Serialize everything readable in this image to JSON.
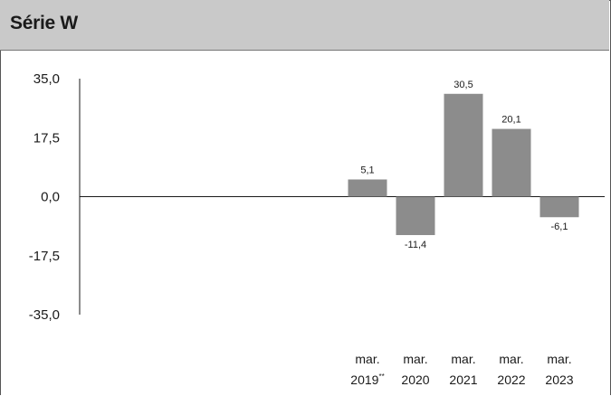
{
  "header": {
    "title": "Série W"
  },
  "chart_data": {
    "type": "bar",
    "title": "Série W",
    "xlabel": "",
    "ylabel": "",
    "ylim": [
      -35.0,
      35.0
    ],
    "yticks": [
      "35,0",
      "17,5",
      "0,0",
      "-17,5",
      "-35,0"
    ],
    "ytick_values": [
      35.0,
      17.5,
      0.0,
      -17.5,
      -35.0
    ],
    "categories": [
      {
        "line1": "mar.",
        "line2": "2019",
        "sup": "**"
      },
      {
        "line1": "mar.",
        "line2": "2020",
        "sup": ""
      },
      {
        "line1": "mar.",
        "line2": "2021",
        "sup": ""
      },
      {
        "line1": "mar.",
        "line2": "2022",
        "sup": ""
      },
      {
        "line1": "mar.",
        "line2": "2023",
        "sup": ""
      }
    ],
    "values": [
      5.1,
      -11.4,
      30.5,
      20.1,
      -6.1
    ],
    "value_labels": [
      "5,1",
      "-11,4",
      "30,5",
      "20,1",
      "-6,1"
    ],
    "bar_color": "#8c8c8c",
    "grid": false,
    "legend": "none"
  }
}
